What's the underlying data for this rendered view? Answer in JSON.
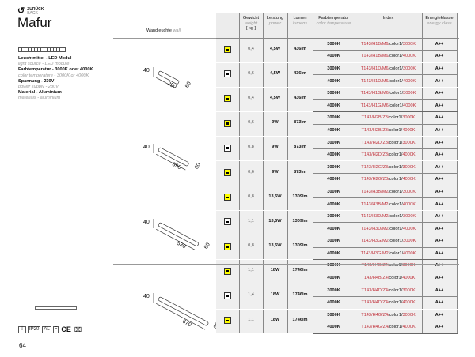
{
  "header": {
    "back_de": "ZURÜCK",
    "back_en": "BACK",
    "title": "Mafur",
    "section_de": "Wandleuchte",
    "section_en": "wall"
  },
  "columns": [
    {
      "de": "Gewicht",
      "en": "weight",
      "unit": "[ kg ]"
    },
    {
      "de": "Leistung",
      "en": "power"
    },
    {
      "de": "Lumen",
      "en": "lumens"
    },
    {
      "de": "Farbtemperatur",
      "en": "color temperature"
    },
    {
      "de": "Index",
      "en": ""
    },
    {
      "de": "Energieklasse",
      "en": "energy class"
    }
  ],
  "specs": [
    {
      "de": "Leuchtmittel - LED Modul",
      "en": "light source - LED module"
    },
    {
      "de": "Farbtemperatur - 3000K oder 4000K",
      "en": "color temperature - 3000K or 4000K"
    },
    {
      "de": "Spannung - 230V",
      "en": "power supply - 230V"
    },
    {
      "de": "Material - Aluminium",
      "en": "materials - aluminium"
    }
  ],
  "drawings": [
    {
      "h": "40",
      "l": "250",
      "w": "60"
    },
    {
      "h": "40",
      "l": "390",
      "w": "60"
    },
    {
      "h": "40",
      "l": "530",
      "w": "60"
    },
    {
      "h": "40",
      "l": "670",
      "w": "60"
    }
  ],
  "products": [
    {
      "finish": "yellow",
      "weight": "0,4",
      "power": "4,5W",
      "lumen": "436lm",
      "prefix": "T143/H1B/M6/"
    },
    {
      "finish": "white",
      "weight": "0,6",
      "power": "4,5W",
      "lumen": "436lm",
      "prefix": "T143/H1D/M6/"
    },
    {
      "finish": "yellow",
      "weight": "0,4",
      "power": "4,5W",
      "lumen": "436lm",
      "prefix": "T143/H1G/M6/"
    },
    {
      "finish": "yellow",
      "weight": "0,6",
      "power": "9W",
      "lumen": "873lm",
      "prefix": "T143/H2B/Z3/"
    },
    {
      "finish": "white",
      "weight": "0,8",
      "power": "9W",
      "lumen": "873lm",
      "prefix": "T143/H2D/Z3/"
    },
    {
      "finish": "yellow",
      "weight": "0,6",
      "power": "9W",
      "lumen": "873lm",
      "prefix": "T143/H2G/Z3/"
    },
    {
      "finish": "yellow",
      "weight": "0,8",
      "power": "13,5W",
      "lumen": "1309lm",
      "prefix": "T143/H3B/M2/"
    },
    {
      "finish": "white",
      "weight": "1,1",
      "power": "13,5W",
      "lumen": "1309lm",
      "prefix": "T143/H3D/M2/"
    },
    {
      "finish": "yellow",
      "weight": "0,8",
      "power": "13,5W",
      "lumen": "1309lm",
      "prefix": "T143/H3G/M2/"
    },
    {
      "finish": "yellow",
      "weight": "1,1",
      "power": "18W",
      "lumen": "1746lm",
      "prefix": "T143/H4B/Z4/"
    },
    {
      "finish": "white",
      "weight": "1,4",
      "power": "18W",
      "lumen": "1746lm",
      "prefix": "T143/H4D/Z4/"
    },
    {
      "finish": "yellow",
      "weight": "1,1",
      "power": "18W",
      "lumen": "1746lm",
      "prefix": "T143/H4G/Z4/"
    }
  ],
  "variants": [
    {
      "temp": "3000K",
      "color": "color1/",
      "energy": "A++"
    },
    {
      "temp": "4000K",
      "color": "color1/",
      "energy": "A++"
    }
  ],
  "certs": [
    "IP20",
    "AL",
    "F",
    "CE"
  ],
  "page_number": "64"
}
